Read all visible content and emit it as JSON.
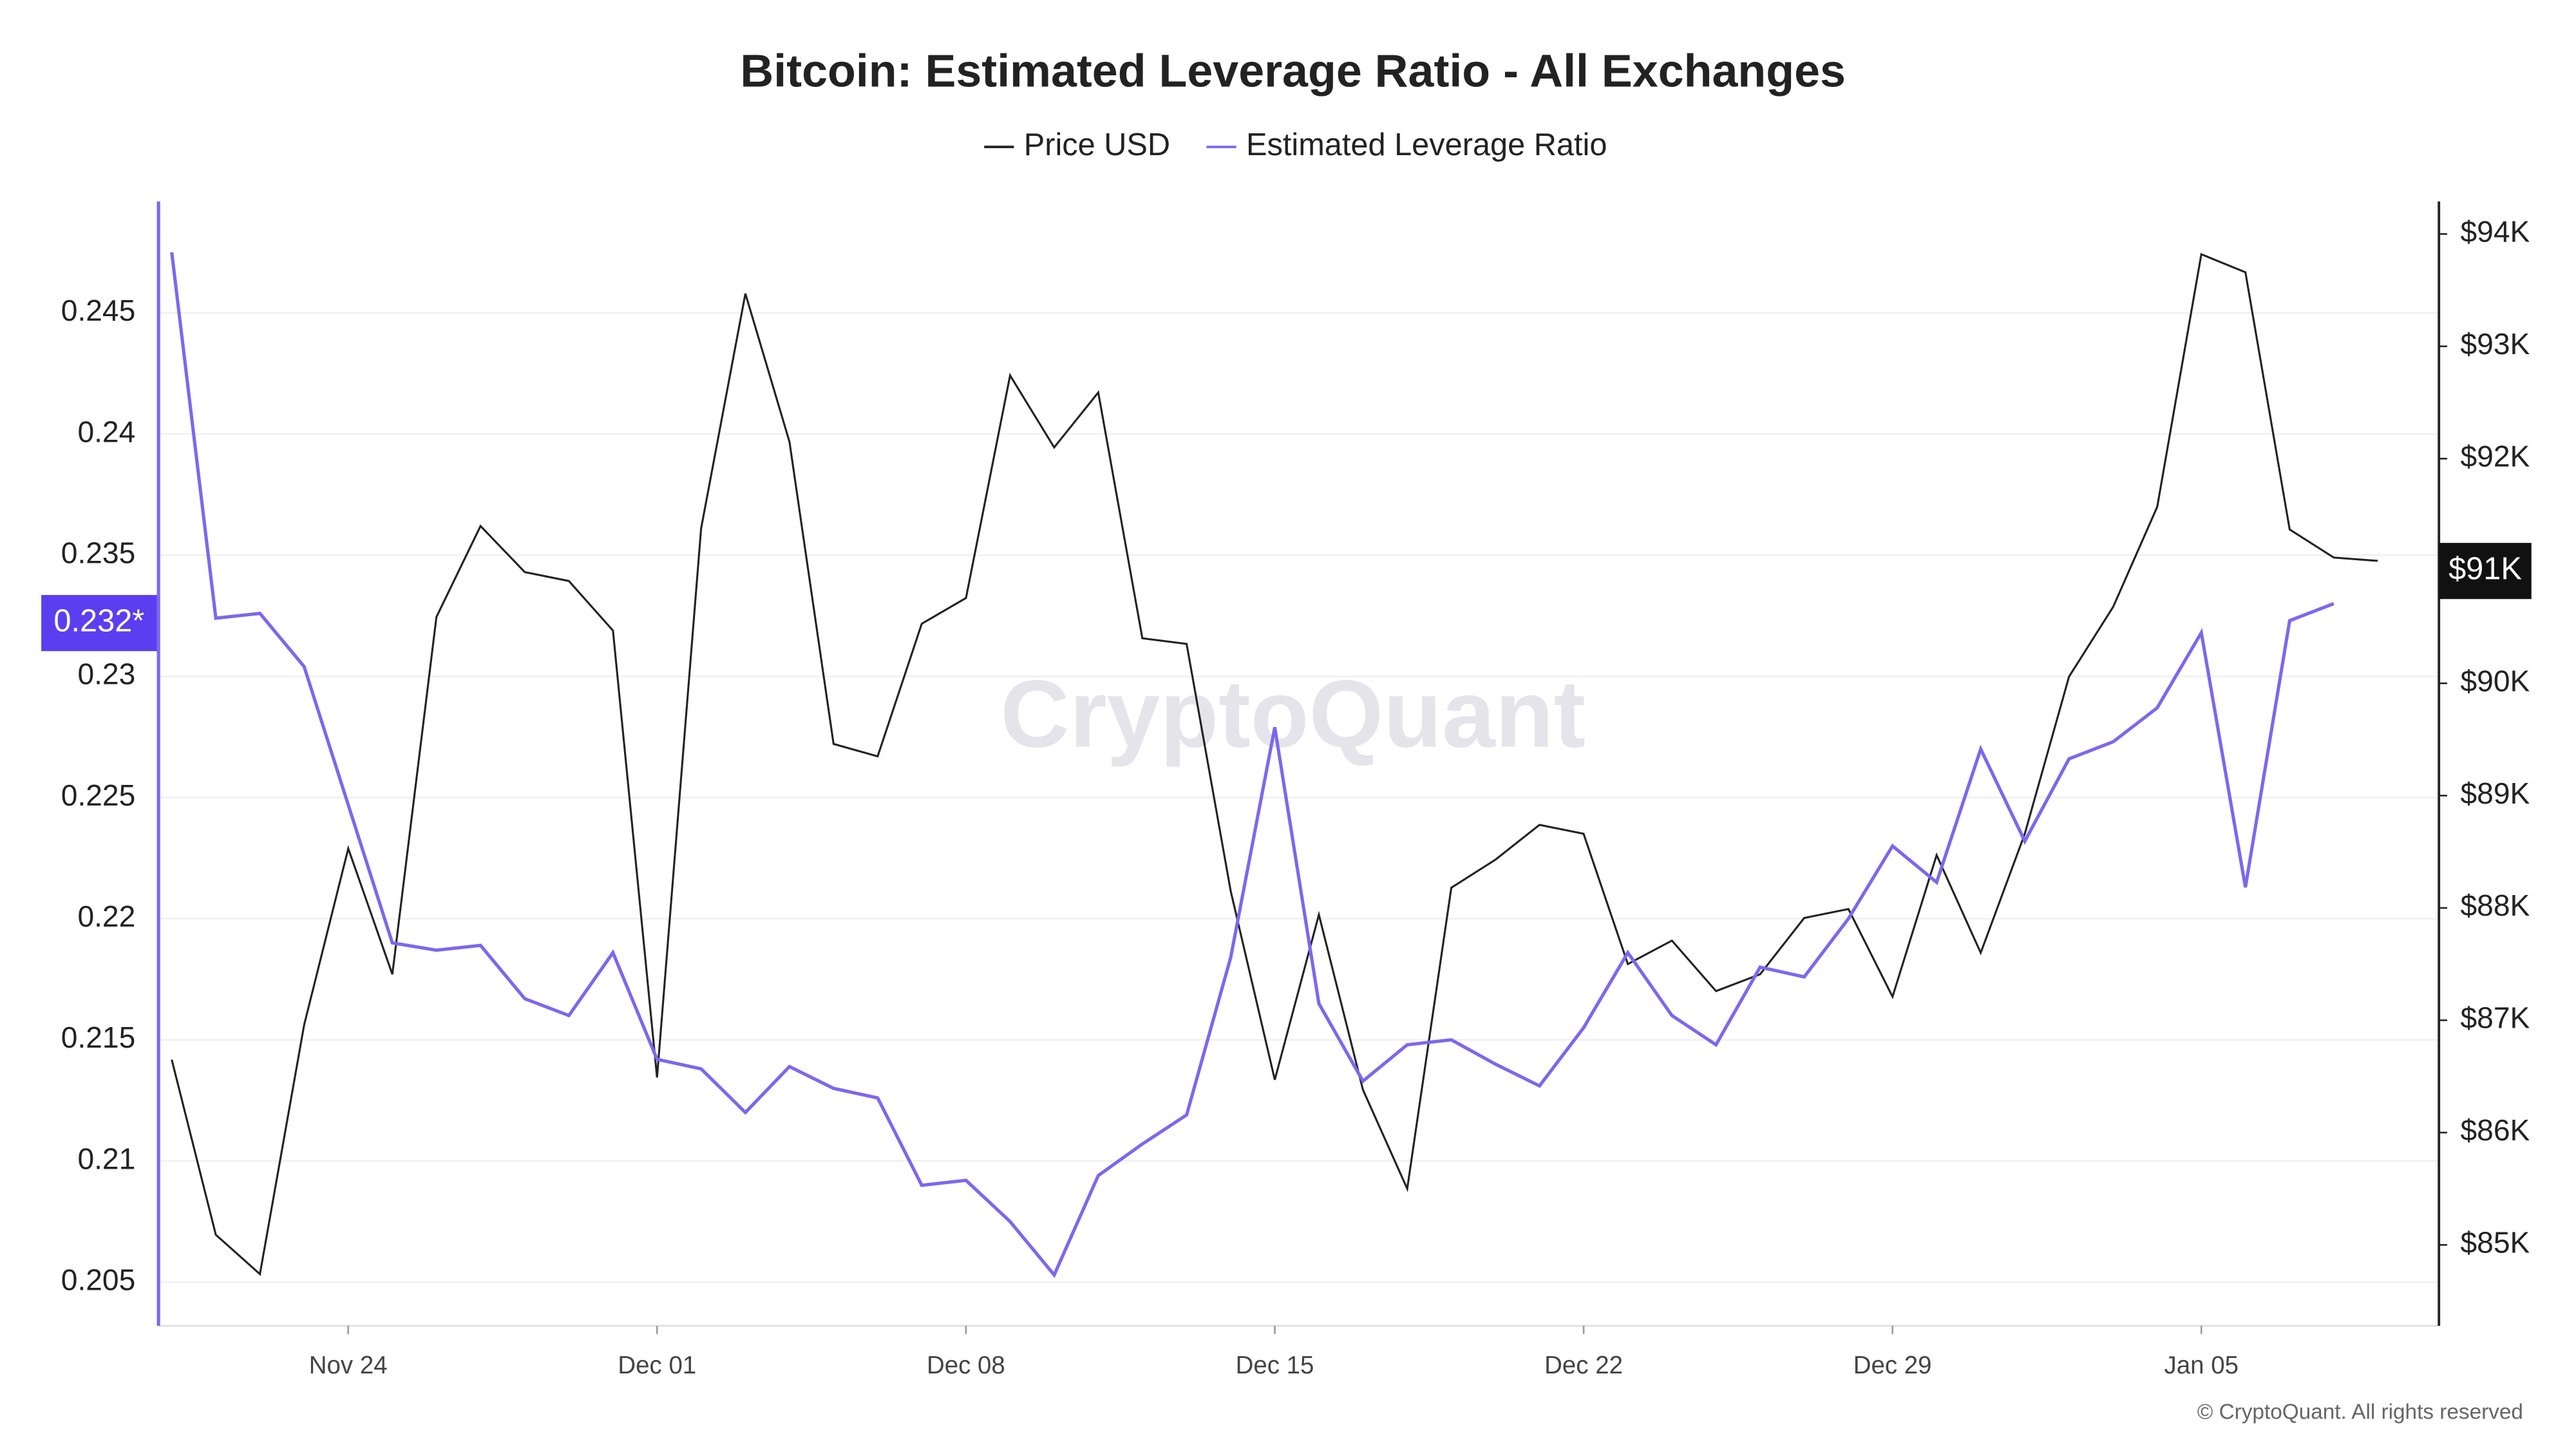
{
  "chart_data": {
    "type": "line",
    "title": "Bitcoin: Estimated Leverage Ratio - All Exchanges",
    "categories": [
      null,
      null,
      null,
      null,
      "Nov 24",
      null,
      null,
      null,
      null,
      null,
      null,
      "Dec 01",
      null,
      null,
      null,
      null,
      null,
      null,
      "Dec 08",
      null,
      null,
      null,
      null,
      null,
      null,
      "Dec 15",
      null,
      null,
      null,
      null,
      null,
      null,
      "Dec 22",
      null,
      null,
      null,
      null,
      null,
      null,
      "Dec 29",
      null,
      null,
      null,
      null,
      null,
      null,
      "Jan 05",
      null,
      null,
      null,
      null
    ],
    "series": [
      {
        "name": "Price USD",
        "color": "#222222",
        "axis": "y2",
        "values": [
          86650,
          85090,
          84740,
          86960,
          88530,
          87410,
          90590,
          91400,
          90990,
          90910,
          90470,
          86490,
          91380,
          93470,
          92150,
          89460,
          89350,
          90530,
          90760,
          92740,
          92100,
          92590,
          90400,
          90350,
          88150,
          86470,
          87940,
          86380,
          85500,
          88180,
          88430,
          88740,
          88660,
          87500,
          87710,
          87260,
          87410,
          87910,
          87990,
          87210,
          88470,
          87600,
          88660,
          90060,
          90680,
          91570,
          93820,
          93660,
          91370,
          91120,
          91090
        ]
      },
      {
        "name": "Estimated Leverage Ratio",
        "color": "#7b68ee",
        "values": [
          0.2475,
          0.2324,
          0.2326,
          0.2304,
          0.2247,
          0.219,
          0.2187,
          0.2189,
          0.2167,
          0.216,
          0.2186,
          0.2142,
          0.2138,
          0.212,
          0.2139,
          0.213,
          0.2126,
          0.209,
          0.2092,
          0.2075,
          0.2053,
          0.2094,
          0.2107,
          0.2119,
          0.2184,
          0.2279,
          0.2165,
          0.2133,
          0.2148,
          0.215,
          0.214,
          0.2131,
          0.2155,
          0.2186,
          0.216,
          0.2148,
          0.218,
          0.2176,
          0.22,
          0.223,
          0.2215,
          0.227,
          0.2232,
          0.2266,
          0.2273,
          0.2287,
          0.2318,
          0.2213,
          0.2323,
          0.233,
          null
        ]
      }
    ],
    "ylim": [
      0.2032,
      0.2496
    ],
    "yticks": [
      0.205,
      0.21,
      0.215,
      0.22,
      0.225,
      0.23,
      0.235,
      0.24,
      0.245
    ],
    "y2lim": [
      84280,
      94290
    ],
    "y2ticks": [
      {
        "value": 85000,
        "label": "$85K"
      },
      {
        "value": 86000,
        "label": "$86K"
      },
      {
        "value": 87000,
        "label": "$87K"
      },
      {
        "value": 88000,
        "label": "$88K"
      },
      {
        "value": 89000,
        "label": "$89K"
      },
      {
        "value": 90000,
        "label": "$90K"
      },
      {
        "value": 91000,
        "label": "$91K"
      },
      {
        "value": 92000,
        "label": "$92K"
      },
      {
        "value": 93000,
        "label": "$93K"
      },
      {
        "value": 94000,
        "label": "$94K"
      }
    ],
    "y_marker": {
      "value": 0.2322,
      "label": "0.232*"
    },
    "y2_marker": {
      "value": 91000,
      "label": "$91K"
    },
    "grid": true,
    "watermark": "CryptoQuant",
    "copyright": "© CryptoQuant. All rights reserved"
  }
}
